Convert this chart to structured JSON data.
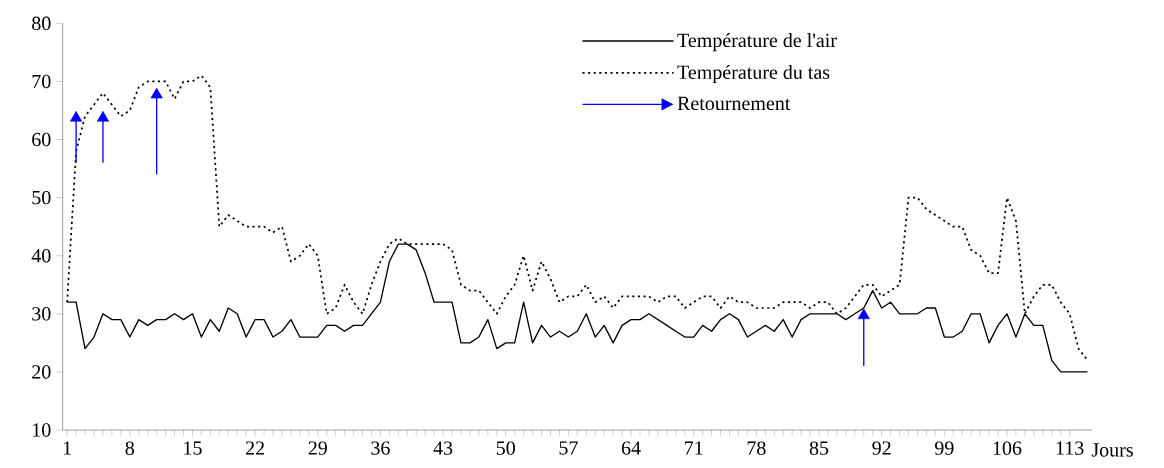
{
  "chart_data": {
    "type": "line",
    "xlabel": "Jours",
    "x": [
      1,
      2,
      3,
      4,
      5,
      6,
      7,
      8,
      9,
      10,
      11,
      12,
      13,
      14,
      15,
      16,
      17,
      18,
      19,
      20,
      21,
      22,
      23,
      24,
      25,
      26,
      27,
      28,
      29,
      30,
      31,
      32,
      33,
      34,
      35,
      36,
      37,
      38,
      39,
      40,
      41,
      42,
      43,
      44,
      45,
      46,
      47,
      48,
      49,
      50,
      51,
      52,
      53,
      54,
      55,
      56,
      57,
      58,
      59,
      60,
      61,
      62,
      63,
      64,
      65,
      66,
      67,
      68,
      69,
      70,
      71,
      72,
      73,
      74,
      75,
      76,
      77,
      78,
      79,
      80,
      81,
      82,
      83,
      84,
      85,
      86,
      87,
      88,
      89,
      90,
      91,
      92,
      93,
      94,
      95,
      96,
      97,
      98,
      99,
      100,
      101,
      102,
      103,
      104,
      105,
      106,
      107,
      108,
      109,
      110,
      111,
      112,
      113,
      114,
      115
    ],
    "series": [
      {
        "name": "Température de l'air",
        "color": "#000000",
        "line_style": "solid",
        "values": [
          32,
          32,
          24,
          26,
          30,
          29,
          29,
          26,
          29,
          28,
          29,
          29,
          30,
          29,
          30,
          26,
          29,
          27,
          31,
          30,
          26,
          29,
          29,
          26,
          27,
          29,
          26,
          26,
          26,
          28,
          28,
          27,
          28,
          28,
          30,
          32,
          39,
          42,
          42,
          41,
          37,
          32,
          32,
          32,
          25,
          25,
          26,
          29,
          24,
          25,
          25,
          32,
          25,
          28,
          26,
          27,
          26,
          27,
          30,
          26,
          28,
          25,
          28,
          29,
          29,
          30,
          29,
          28,
          27,
          26,
          26,
          28,
          27,
          29,
          30,
          29,
          26,
          27,
          28,
          27,
          29,
          26,
          29,
          30,
          30,
          30,
          30,
          29,
          30,
          31,
          34,
          31,
          32,
          30,
          30,
          30,
          31,
          31,
          26,
          26,
          27,
          30,
          30,
          25,
          28,
          30,
          26,
          30,
          28,
          28,
          22,
          20,
          20,
          20,
          20
        ]
      },
      {
        "name": "Température du tas",
        "color": "#000000",
        "line_style": "dotted",
        "values": [
          32,
          58,
          64,
          66,
          68,
          66,
          64,
          65,
          69,
          70,
          70,
          70,
          67,
          70,
          70,
          71,
          69,
          45,
          47,
          46,
          45,
          45,
          45,
          44,
          45,
          39,
          40,
          42,
          40,
          30,
          31,
          35,
          32,
          30,
          35,
          39,
          42,
          43,
          42,
          42,
          42,
          42,
          42,
          41,
          35,
          34,
          34,
          32,
          30,
          33,
          35,
          40,
          34,
          39,
          36,
          32,
          33,
          33,
          35,
          32,
          33,
          31,
          33,
          33,
          33,
          33,
          32,
          33,
          33,
          31,
          32,
          33,
          33,
          31,
          33,
          32,
          32,
          31,
          31,
          31,
          32,
          32,
          32,
          31,
          32,
          32,
          30,
          31,
          33,
          35,
          35,
          33,
          34,
          35,
          50,
          50,
          48,
          47,
          46,
          45,
          45,
          41,
          40,
          37,
          37,
          50,
          46,
          30,
          33,
          35,
          35,
          32,
          30,
          24,
          22
        ]
      },
      {
        "name": "Retournement",
        "type": "scatter",
        "marker": "triangle",
        "color": "#0000ff",
        "x": [
          2,
          5,
          11,
          90
        ],
        "values": [
          64,
          64,
          68,
          30
        ],
        "errors": [
          [
            56,
            64
          ],
          [
            56,
            64
          ],
          [
            54,
            68
          ],
          [
            21,
            30
          ]
        ]
      }
    ],
    "xlim": [
      0.5,
      115.5
    ],
    "xticks": [
      1,
      8,
      15,
      22,
      29,
      36,
      43,
      50,
      57,
      64,
      71,
      78,
      85,
      92,
      99,
      106,
      113
    ],
    "ylim": [
      10,
      80
    ],
    "yticks": [
      10,
      20,
      30,
      40,
      50,
      60,
      70,
      80
    ],
    "grid": false,
    "legend": "top right",
    "marker": "none"
  }
}
